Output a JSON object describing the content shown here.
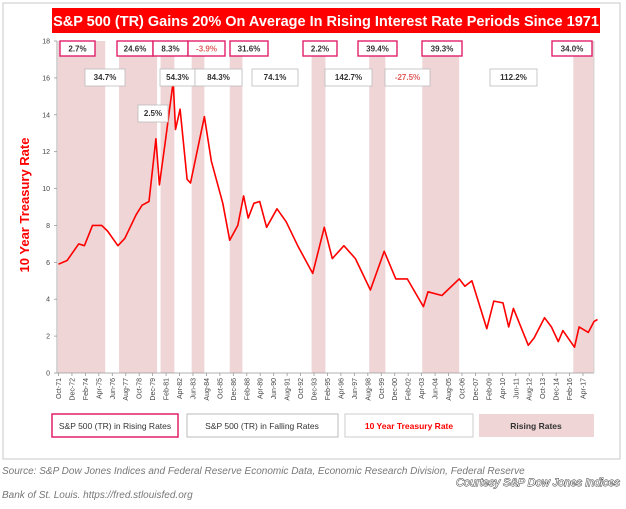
{
  "chart_data": {
    "type": "line",
    "title": "S&P 500 (TR) Gains 20% On Average In Rising Interest Rate Periods Since 1971",
    "ylabel": "10 Year Treasury Rate",
    "xlabel": "",
    "ylim": [
      0,
      18
    ],
    "yticks": [
      0,
      2,
      4,
      6,
      8,
      10,
      12,
      14,
      16,
      18
    ],
    "xtick_labels": [
      "Oct-71",
      "Dec-72",
      "Feb-74",
      "Apr-75",
      "Jun-76",
      "Aug-77",
      "Oct-78",
      "Dec-79",
      "Feb-81",
      "Apr-82",
      "Jun-83",
      "Aug-84",
      "Oct-85",
      "Dec-86",
      "Feb-88",
      "Apr-89",
      "Jun-90",
      "Aug-91",
      "Oct-92",
      "Dec-93",
      "Feb-95",
      "Apr-96",
      "Jun-97",
      "Aug-98",
      "Oct-99",
      "Dec-00",
      "Feb-02",
      "Apr-03",
      "Jun-04",
      "Aug-05",
      "Oct-06",
      "Dec-07",
      "Feb-09",
      "Apr-10",
      "Jun-11",
      "Aug-12",
      "Oct-13",
      "Dec-14",
      "Feb-16",
      "Apr-17"
    ],
    "grid": false,
    "series": [
      {
        "name": "10 Year Treasury Rate",
        "color": "#ff0000",
        "x": [
          1971.75,
          1972.5,
          1973.5,
          1974.0,
          1974.7,
          1975.5,
          1976.0,
          1976.9,
          1977.5,
          1978.5,
          1979.0,
          1979.6,
          1980.2,
          1980.5,
          1981.0,
          1981.7,
          1981.9,
          1982.3,
          1982.9,
          1983.2,
          1984.4,
          1985.0,
          1986.0,
          1986.6,
          1987.3,
          1987.8,
          1988.2,
          1988.7,
          1989.2,
          1989.8,
          1990.7,
          1991.5,
          1992.5,
          1993.8,
          1994.8,
          1995.5,
          1996.5,
          1997.5,
          1998.8,
          2000.0,
          2001.0,
          2002.0,
          2003.4,
          2003.8,
          2005.0,
          2006.5,
          2007.0,
          2007.6,
          2008.9,
          2009.5,
          2010.3,
          2010.8,
          2011.2,
          2012.5,
          2013.0,
          2013.9,
          2014.5,
          2015.1,
          2015.5,
          2016.5,
          2016.9,
          2017.7,
          2018.2,
          2018.5
        ],
        "values": [
          5.9,
          6.1,
          7.0,
          6.9,
          8.0,
          8.0,
          7.7,
          6.9,
          7.3,
          8.6,
          9.1,
          9.3,
          12.7,
          10.2,
          12.5,
          15.8,
          13.2,
          14.3,
          10.5,
          10.3,
          13.9,
          11.5,
          9.2,
          7.2,
          8.0,
          9.6,
          8.4,
          9.2,
          9.3,
          7.9,
          8.9,
          8.2,
          6.9,
          5.4,
          7.9,
          6.2,
          6.9,
          6.2,
          4.5,
          6.6,
          5.1,
          5.1,
          3.6,
          4.4,
          4.2,
          5.1,
          4.7,
          5.0,
          2.4,
          3.9,
          3.8,
          2.5,
          3.5,
          1.5,
          1.9,
          3.0,
          2.5,
          1.7,
          2.3,
          1.4,
          2.5,
          2.2,
          2.8,
          2.9
        ]
      }
    ],
    "rising_rate_periods": [
      {
        "start": 1971.7,
        "end": 1975.8,
        "sp500_return": "2.7%"
      },
      {
        "start": 1977.0,
        "end": 1980.3,
        "sp500_return": "24.6%"
      },
      {
        "start": 1980.6,
        "end": 1981.8,
        "sp500_return": "8.3%"
      },
      {
        "start": 1983.3,
        "end": 1984.4,
        "sp500_return": "-3.9%"
      },
      {
        "start": 1986.6,
        "end": 1987.7,
        "sp500_return": "31.6%"
      },
      {
        "start": 1993.7,
        "end": 1994.9,
        "sp500_return": "2.2%"
      },
      {
        "start": 1998.7,
        "end": 2000.1,
        "sp500_return": "39.4%"
      },
      {
        "start": 2003.3,
        "end": 2006.5,
        "sp500_return": "39.3%"
      },
      {
        "start": 2016.4,
        "end": 2018.6,
        "sp500_return": "34.0%"
      }
    ],
    "falling_rate_returns": [
      "34.7%",
      "2.5%",
      "54.3%",
      "84.3%",
      "74.1%",
      "142.7%",
      "-27.5%",
      "112.2%"
    ],
    "colors": {
      "line": "#ff0000",
      "band": "#efd5d6",
      "rising_box": "#e0206a",
      "falling_box": "#bbbbbb",
      "negative": "#e06060",
      "title_bg": "#ff0000"
    },
    "legend": {
      "placement": "bottom",
      "items": [
        "S&P 500 (TR) in Rising Rates",
        "S&P 500 (TR) in Falling Rates",
        "10 Year Treasury Rate",
        "Rising Rates"
      ]
    }
  },
  "source": {
    "line1": "Source: S&P Dow Jones Indices and Federal Reserve Economic Data, Economic Research Division, Federal Reserve",
    "line2": "Bank of St. Louis. https://fred.stlouisfed.org",
    "courtesy": "Courtesy S&P Dow Jones Indices"
  }
}
